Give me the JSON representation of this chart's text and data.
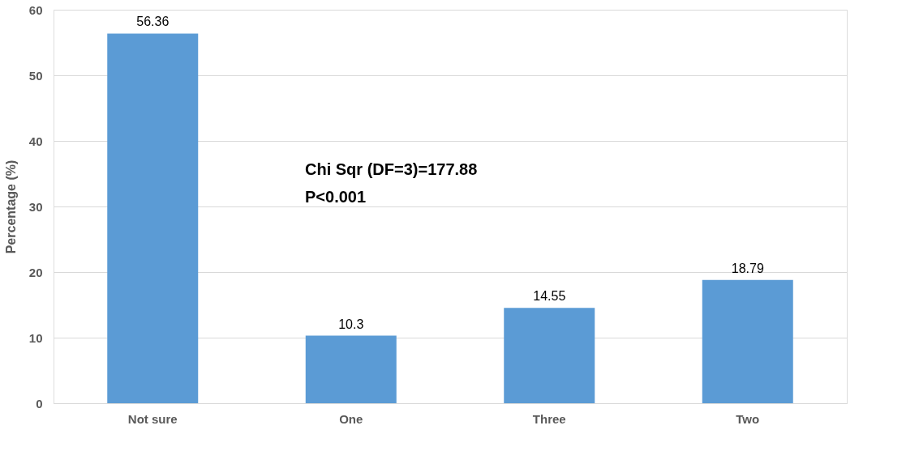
{
  "chart_data": {
    "type": "bar",
    "ylabel": "Percentage (%)",
    "categories": [
      "Not sure",
      "One",
      "Three",
      "Two"
    ],
    "values": [
      56.36,
      10.3,
      14.55,
      18.79
    ],
    "color": "#5b9bd5",
    "ylim": [
      0,
      60
    ],
    "yticks": [
      0,
      10,
      20,
      30,
      40,
      50,
      60
    ],
    "grid": "y",
    "data_labels": true,
    "annotations": [
      "Chi Sqr (DF=3)=177.88",
      "P<0.001"
    ]
  }
}
